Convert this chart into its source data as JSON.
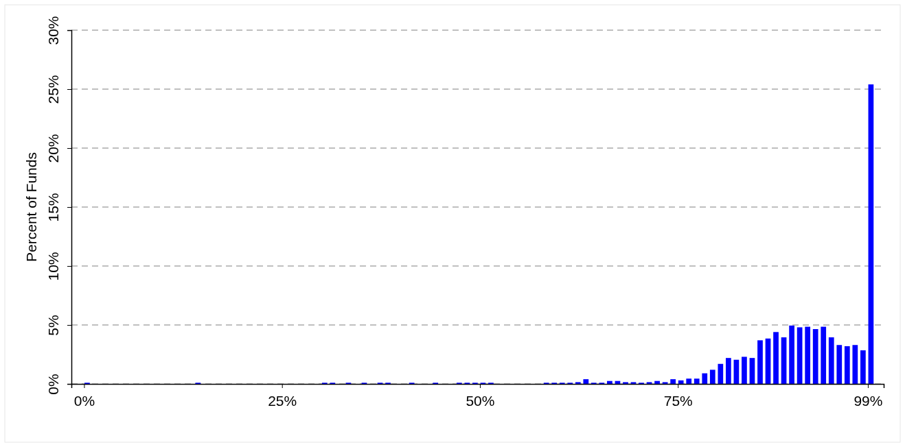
{
  "chart_data": {
    "type": "histogram",
    "ylabel": "Percent of Funds",
    "bins": [
      0,
      1,
      2,
      3,
      4,
      5,
      6,
      7,
      8,
      9,
      10,
      11,
      12,
      13,
      14,
      15,
      16,
      17,
      18,
      19,
      20,
      21,
      22,
      23,
      24,
      25,
      26,
      27,
      28,
      29,
      30,
      31,
      32,
      33,
      34,
      35,
      36,
      37,
      38,
      39,
      40,
      41,
      42,
      43,
      44,
      45,
      46,
      47,
      48,
      49,
      50,
      51,
      52,
      53,
      54,
      55,
      56,
      57,
      58,
      59,
      60,
      61,
      62,
      63,
      64,
      65,
      66,
      67,
      68,
      69,
      70,
      71,
      72,
      73,
      74,
      75,
      76,
      77,
      78,
      79,
      80,
      81,
      82,
      83,
      84,
      85,
      86,
      87,
      88,
      89,
      90,
      91,
      92,
      93,
      94,
      95,
      96,
      97,
      98,
      99,
      100
    ],
    "values": [
      0.1,
      0,
      0,
      0,
      0,
      0,
      0,
      0,
      0,
      0,
      0,
      0,
      0,
      0,
      0.1,
      0,
      0,
      0,
      0,
      0,
      0,
      0,
      0,
      0,
      0,
      0,
      0,
      0,
      0,
      0,
      0.1,
      0.1,
      0,
      0.1,
      0,
      0.1,
      0,
      0.1,
      0.1,
      0,
      0,
      0.1,
      0,
      0,
      0.1,
      0,
      0,
      0.1,
      0.1,
      0.1,
      0.1,
      0.1,
      0,
      0,
      0,
      0,
      0,
      0,
      0.1,
      0.1,
      0.1,
      0.1,
      0.15,
      0.4,
      0.1,
      0.1,
      0.25,
      0.25,
      0.15,
      0.15,
      0.1,
      0.15,
      0.25,
      0.15,
      0.4,
      0.3,
      0.45,
      0.45,
      0.9,
      1.2,
      1.7,
      2.2,
      2.05,
      2.3,
      2.2,
      3.7,
      3.85,
      4.4,
      3.95,
      4.95,
      4.8,
      4.85,
      4.65,
      4.85,
      3.95,
      3.3,
      3.2,
      3.3,
      2.85,
      25.4
    ],
    "color": "#0000ff",
    "xlim": [
      -1.6,
      101
    ],
    "xticks": [
      {
        "value": 0,
        "label": "0%"
      },
      {
        "value": 25,
        "label": "25%"
      },
      {
        "value": 50,
        "label": "50%"
      },
      {
        "value": 75,
        "label": "75%"
      },
      {
        "value": 99,
        "label": "99%"
      }
    ],
    "ylim": [
      0,
      30
    ],
    "yticks": [
      {
        "value": 0,
        "label": "0%"
      },
      {
        "value": 5,
        "label": "5%"
      },
      {
        "value": 10,
        "label": "10%"
      },
      {
        "value": 15,
        "label": "15%"
      },
      {
        "value": 20,
        "label": "20%"
      },
      {
        "value": 25,
        "label": "25%"
      },
      {
        "value": 30,
        "label": "30%"
      }
    ],
    "grid": "y"
  }
}
